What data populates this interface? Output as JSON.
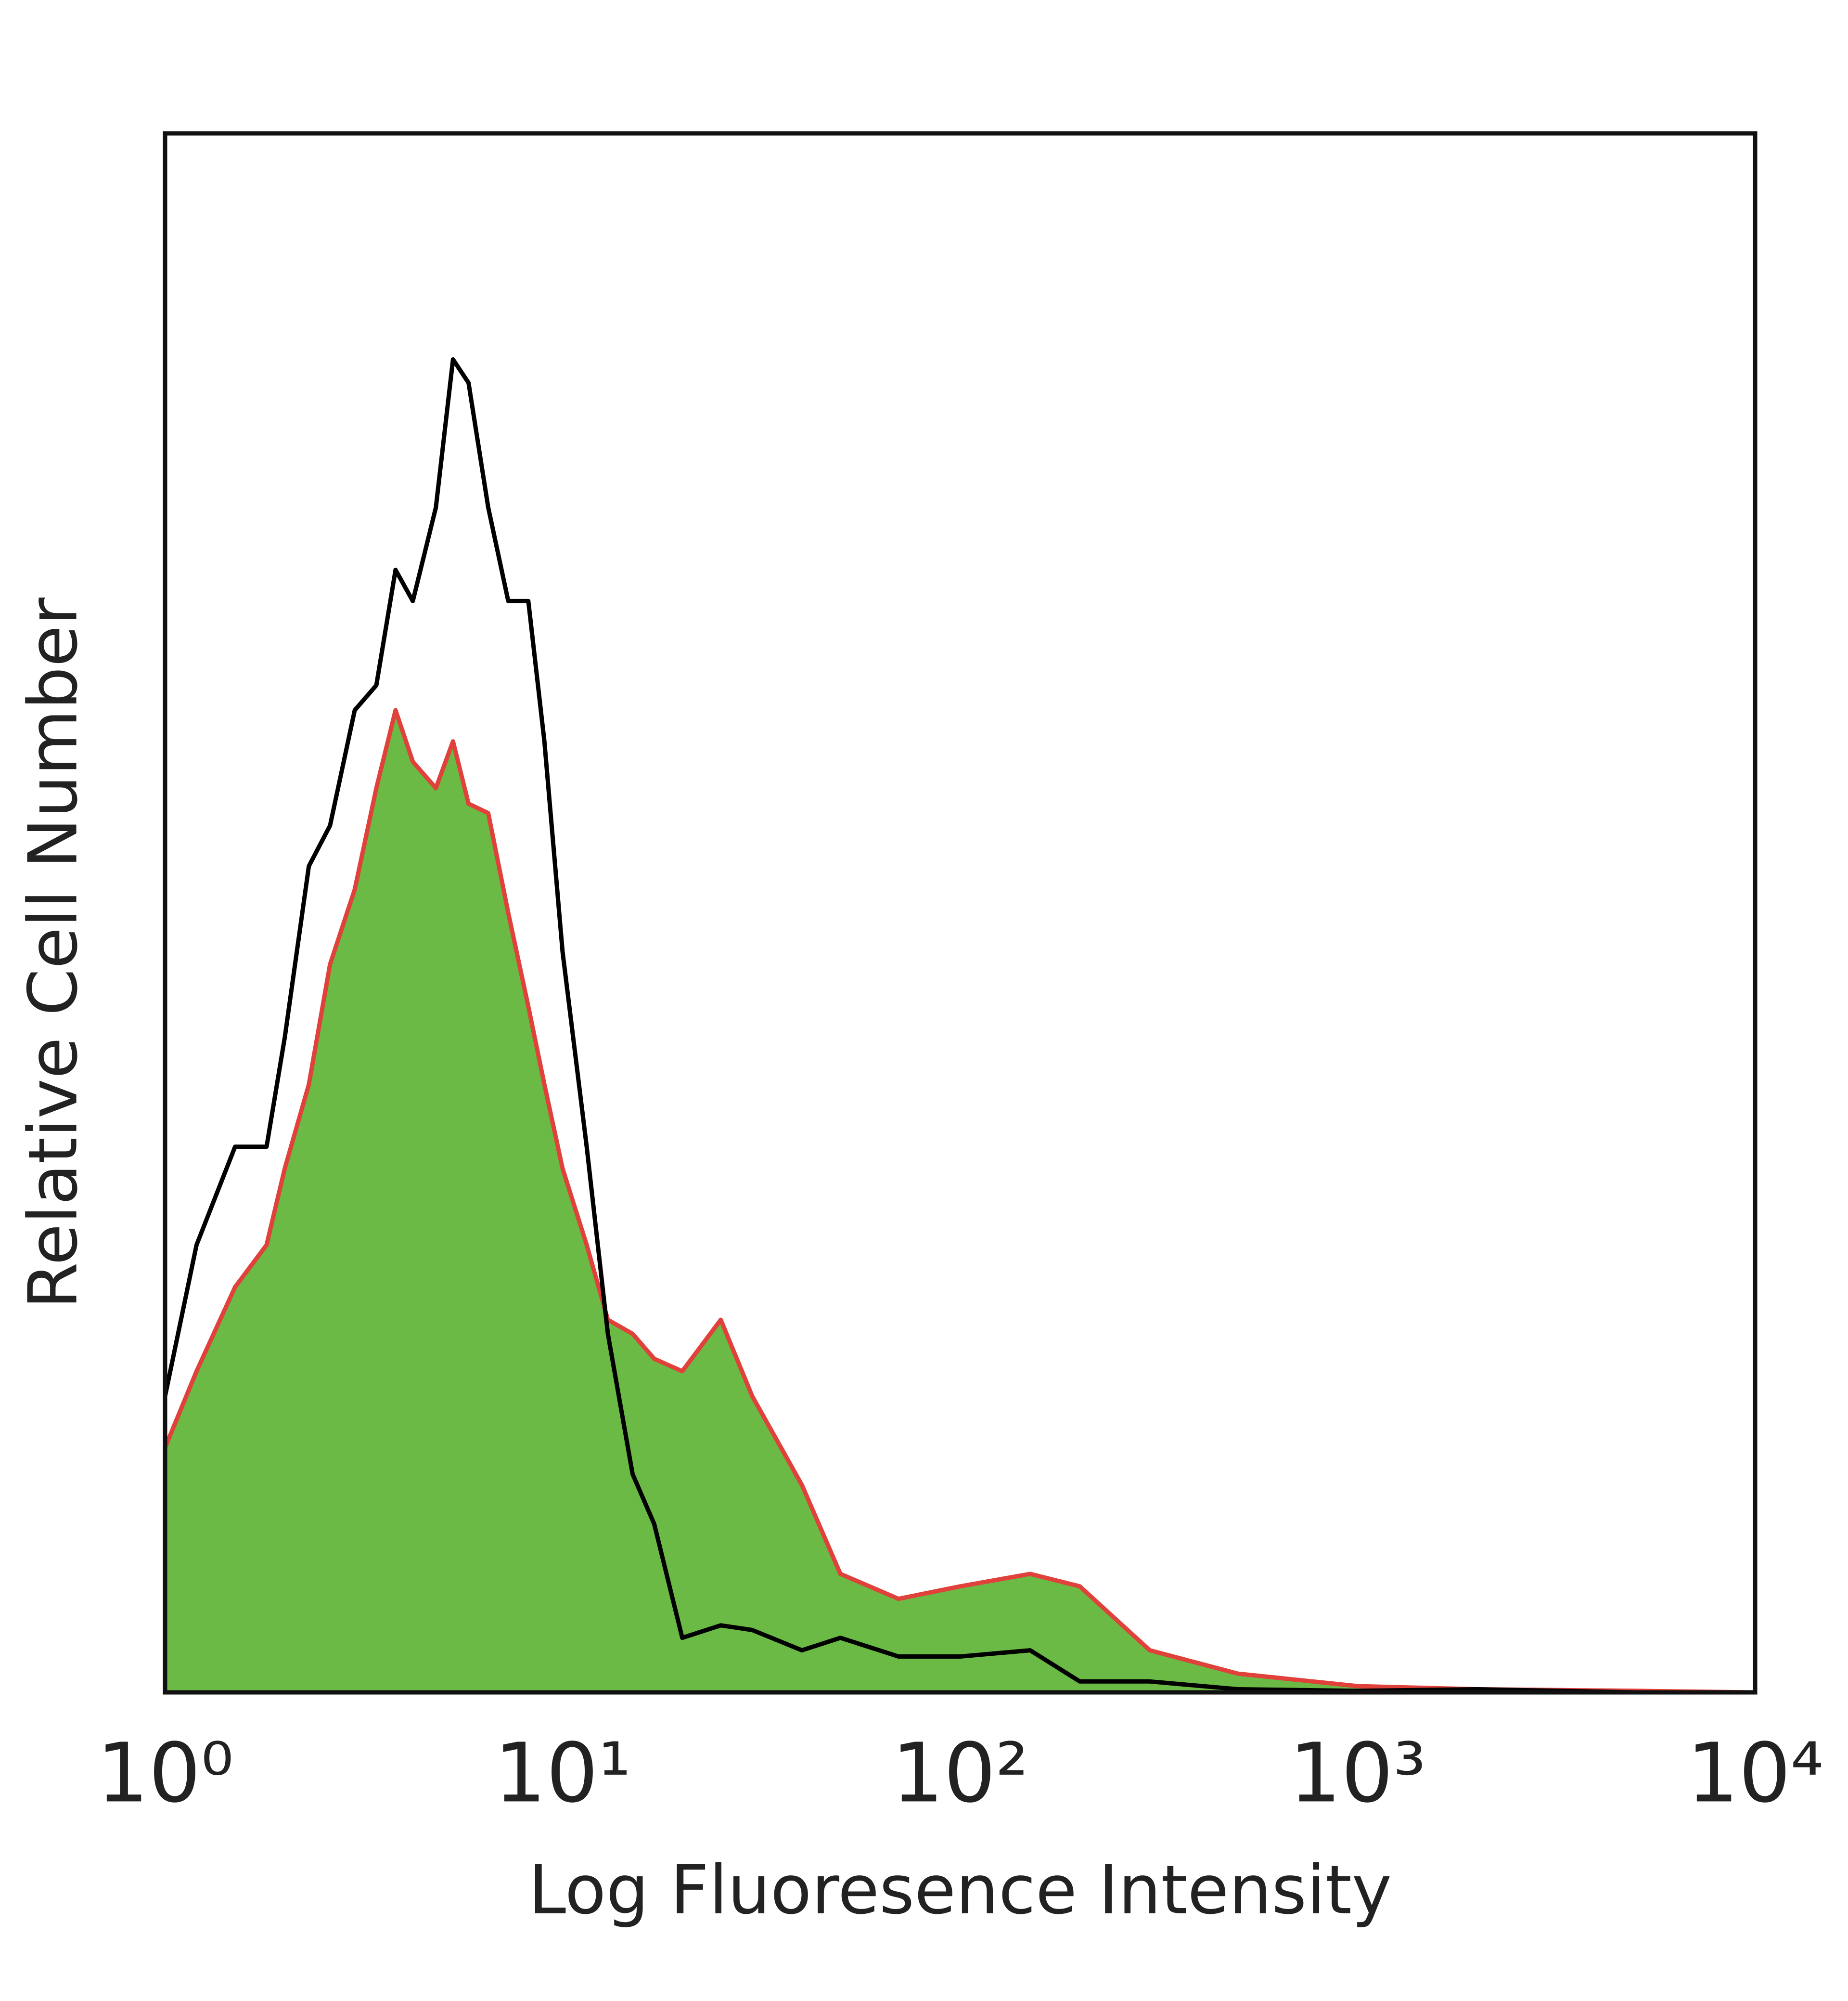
{
  "chart_data": {
    "type": "line",
    "x_label": "Log Fluoresence Intensity",
    "y_label": "Relative Cell Number",
    "x_scale": "log",
    "grid": false,
    "xlim": [
      1,
      10000
    ],
    "ylim": [
      0,
      100
    ],
    "xticks": [
      {
        "value": 1,
        "label": "10⁰"
      },
      {
        "value": 10,
        "label": "10¹"
      },
      {
        "value": 100,
        "label": "10²"
      },
      {
        "value": 1000,
        "label": "10³"
      },
      {
        "value": 10000,
        "label": "10⁴"
      }
    ],
    "x": [
      1,
      1.2,
      1.5,
      1.8,
      2.0,
      2.3,
      2.6,
      3.0,
      3.4,
      3.8,
      4.2,
      4.8,
      5.3,
      5.8,
      6.5,
      7.3,
      8.2,
      9.0,
      10,
      11.5,
      13,
      15,
      17,
      20,
      25,
      30,
      40,
      50,
      70,
      100,
      150,
      200,
      300,
      500,
      1000,
      2000,
      5000,
      10000
    ],
    "series": [
      {
        "color": "#e0413a",
        "fill_color": "#6aba45",
        "filled": true,
        "values": [
          15.7,
          20.6,
          26,
          28.7,
          33.6,
          39,
          46.7,
          51.5,
          58,
          63,
          59.7,
          58,
          61,
          57,
          56.4,
          50,
          44,
          39,
          33.6,
          28.7,
          23.9,
          23,
          21.4,
          20.6,
          23.9,
          19,
          13.3,
          7.6,
          6,
          6.8,
          7.6,
          6.8,
          2.7,
          1.2,
          0.4,
          0.2,
          0.1,
          0
        ]
      },
      {
        "color": "#000000",
        "filled": false,
        "values": [
          19,
          28.7,
          35,
          35,
          42,
          53,
          55.6,
          63,
          64.6,
          72,
          70,
          76,
          85.5,
          84,
          76,
          70,
          70,
          61,
          47.5,
          35,
          23,
          14,
          10.8,
          3.5,
          4.3,
          4,
          2.7,
          3.5,
          2.3,
          2.3,
          2.7,
          0.7,
          0.7,
          0.2,
          0.1,
          0.2,
          0,
          0
        ]
      }
    ]
  }
}
